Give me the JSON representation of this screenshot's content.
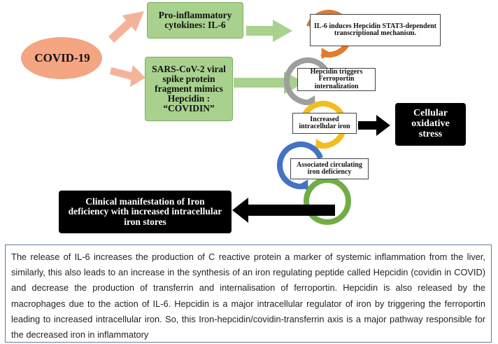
{
  "diagram": {
    "source": "COVID-19",
    "boxes": {
      "proinflammatory": "Pro-inflammatory cytokines: IL-6",
      "spike": "SARS-CoV-2 viral spike protein fragment mimics Hepcidin : “COVIDIN”",
      "cellular_stress": "Cellular oxidative stress",
      "clinical": "Clinical manifestation of Iron deficiency with increased intracellular iron stores"
    },
    "steps": [
      {
        "label": "IL-6 induces Hepcidin STAT3-dependent transcriptional mechanism.",
        "color": "#e07b2f"
      },
      {
        "label": "Hepcidin triggers Ferroportin internalization",
        "color": "#9e9e9e"
      },
      {
        "label": "Increased intracellular iron",
        "color": "#f2bd1d"
      },
      {
        "label": "Associated circulating iron deficiency",
        "color": "#4472c4"
      },
      {
        "label": "",
        "color": "#70ad47"
      }
    ],
    "colors": {
      "oval": "#f4a582",
      "pink_arrow": "#f4b49a",
      "green_arrow": "#a9d18e",
      "green_box": "#a9d18e",
      "black": "#000000"
    }
  },
  "caption": "The release of IL-6 increases the production of C reactive protein a marker of systemic inflammation from the liver, similarly, this also leads to an increase in the synthesis of an iron regulating peptide called Hepcidin (covidin in COVID) and decrease the production of transferrin  and internalisation of ferroportin. Hepcidin is also released by the macrophages due to the action of IL-6. Hepcidin is a major intracellular regulator of iron by triggering the ferroportin leading to increased intracellular iron. So, this Iron-hepcidin/covidin-transferrin axis is a major pathway responsible for the decreased iron in inflammatory"
}
